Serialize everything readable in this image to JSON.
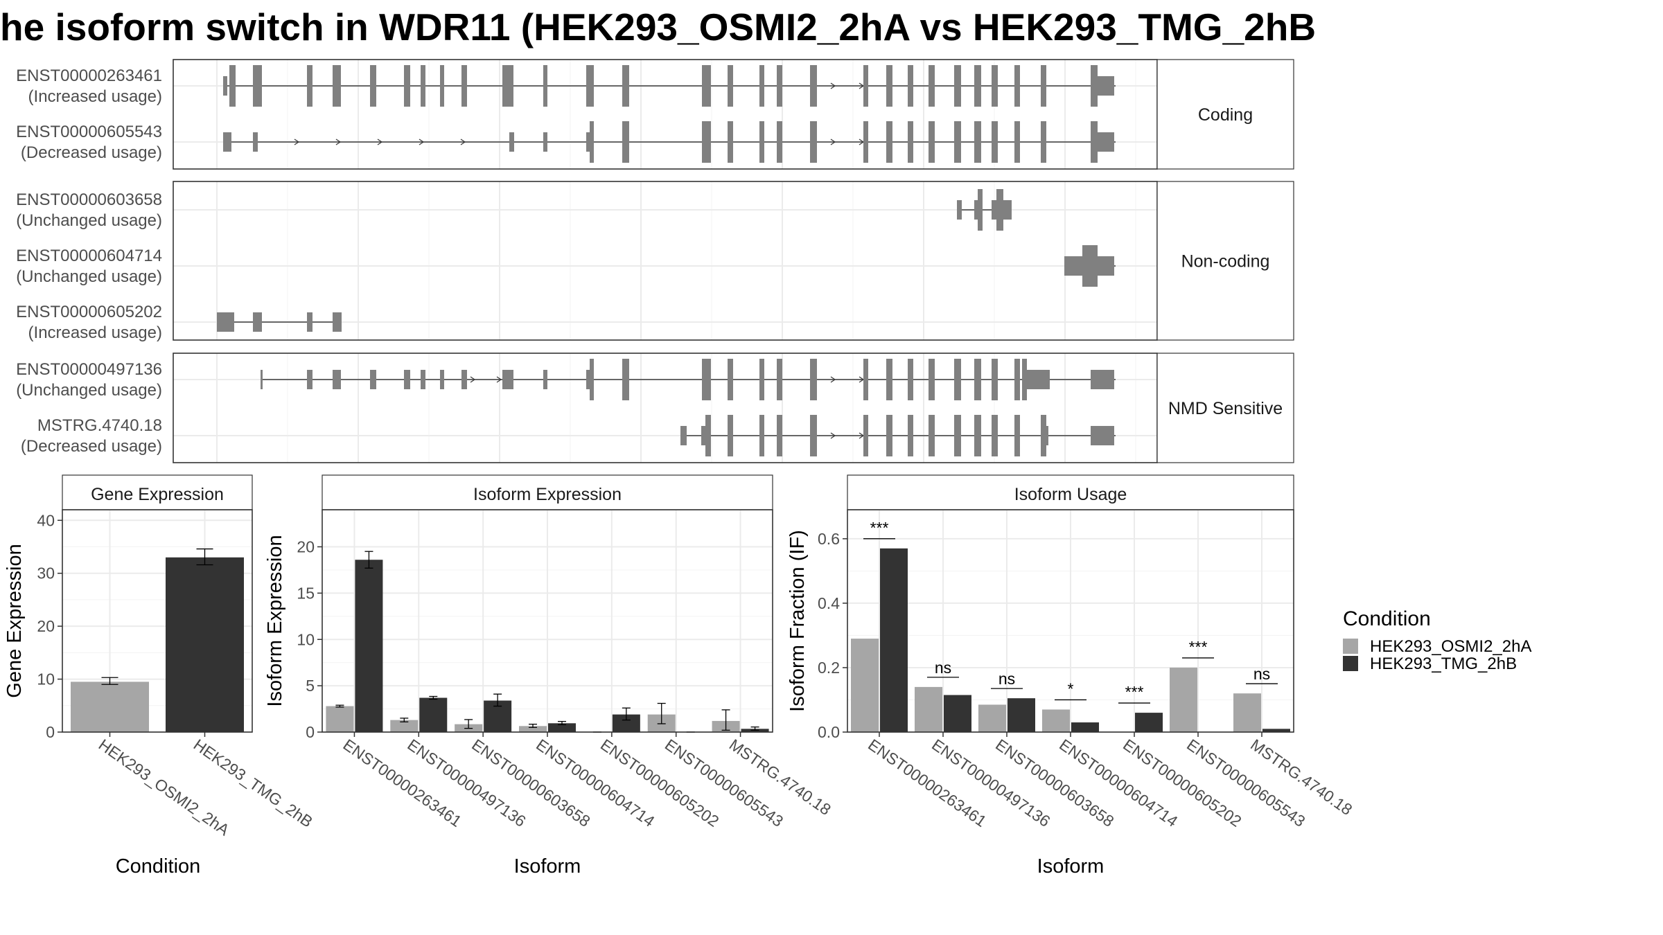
{
  "title": "he isoform switch in WDR11 (HEK293_OSMI2_2hA vs HEK293_TMG_2hB",
  "colors": {
    "cond_a": "#a6a6a6",
    "cond_b": "#333333",
    "exon": "#808080"
  },
  "structure": {
    "panels": [
      {
        "label": "Coding",
        "isoforms": [
          {
            "id": "ENST00000263461",
            "usage": "(Increased usage)"
          },
          {
            "id": "ENST00000605543",
            "usage": "(Decreased usage)"
          }
        ]
      },
      {
        "label": "Non-coding",
        "isoforms": [
          {
            "id": "ENST00000603658",
            "usage": "(Unchanged usage)"
          },
          {
            "id": "ENST00000604714",
            "usage": "(Unchanged usage)"
          },
          {
            "id": "ENST00000605202",
            "usage": "(Increased usage)"
          }
        ]
      },
      {
        "label": "NMD Sensitive",
        "isoforms": [
          {
            "id": "ENST00000497136",
            "usage": "(Unchanged usage)"
          },
          {
            "id": "MSTRG.4740.18",
            "usage": "(Decreased usage)"
          }
        ]
      }
    ]
  },
  "legend": {
    "title": "Condition",
    "items": [
      "HEK293_OSMI2_2hA",
      "HEK293_TMG_2hB"
    ]
  },
  "chart_data": [
    {
      "type": "bar",
      "title": "Gene Expression",
      "xlabel": "Condition",
      "ylabel": "Gene Expression",
      "categories": [
        "HEK293_OSMI2_2hA",
        "HEK293_TMG_2hB"
      ],
      "values": [
        9.5,
        33
      ],
      "errors": [
        [
          9,
          10.3
        ],
        [
          31.6,
          34.6
        ]
      ],
      "ylim": [
        0,
        42
      ],
      "yticks": [
        0,
        10,
        20,
        30,
        40
      ]
    },
    {
      "type": "bar",
      "title": "Isoform Expression",
      "xlabel": "Isoform",
      "ylabel": "Isoform Expression",
      "categories": [
        "ENST00000263461",
        "ENST00000497136",
        "ENST00000603658",
        "ENST00000604714",
        "ENST00000605202",
        "ENST00000605543",
        "MSTRG.4740.18"
      ],
      "series": [
        {
          "name": "HEK293_OSMI2_2hA",
          "values": [
            2.8,
            1.3,
            0.85,
            0.65,
            0,
            1.9,
            1.2
          ],
          "errors": [
            [
              2.7,
              2.9
            ],
            [
              1.1,
              1.5
            ],
            [
              0.4,
              1.35
            ],
            [
              0.5,
              0.85
            ],
            [
              0,
              0
            ],
            [
              0.9,
              3.1
            ],
            [
              0.2,
              2.4
            ]
          ]
        },
        {
          "name": "HEK293_TMG_2hB",
          "values": [
            18.6,
            3.7,
            3.4,
            0.95,
            1.9,
            0,
            0.35
          ],
          "errors": [
            [
              17.7,
              19.5
            ],
            [
              3.55,
              3.85
            ],
            [
              2.8,
              4.1
            ],
            [
              0.8,
              1.15
            ],
            [
              1.3,
              2.6
            ],
            [
              0,
              0
            ],
            [
              0.2,
              0.55
            ]
          ]
        }
      ],
      "ylim": [
        0,
        24
      ],
      "yticks": [
        0,
        5,
        10,
        15,
        20
      ]
    },
    {
      "type": "bar",
      "title": "Isoform Usage",
      "xlabel": "Isoform",
      "ylabel": "Isoform Fraction (IF)",
      "categories": [
        "ENST00000263461",
        "ENST00000497136",
        "ENST00000603658",
        "ENST00000604714",
        "ENST00000605202",
        "ENST00000605543",
        "MSTRG.4740.18"
      ],
      "series": [
        {
          "name": "HEK293_OSMI2_2hA",
          "values": [
            0.29,
            0.14,
            0.085,
            0.07,
            0,
            0.2,
            0.12
          ]
        },
        {
          "name": "HEK293_TMG_2hB",
          "values": [
            0.57,
            0.115,
            0.105,
            0.03,
            0.06,
            0,
            0.01
          ]
        }
      ],
      "significance": [
        "***",
        "ns",
        "ns",
        "*",
        "***",
        "***",
        "ns"
      ],
      "ylim": [
        0,
        0.69
      ],
      "yticks": [
        0.0,
        0.2,
        0.4,
        0.6
      ],
      "ytick_labels": [
        "0.0",
        "0.2",
        "0.4",
        "0.6"
      ]
    }
  ]
}
